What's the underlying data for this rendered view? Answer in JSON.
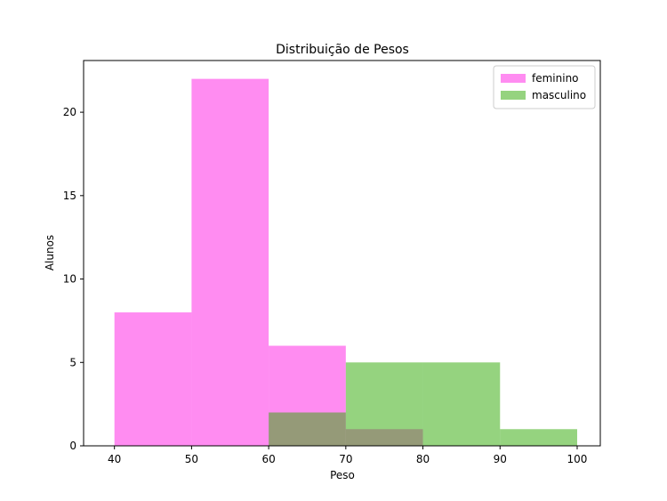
{
  "chart_data": {
    "type": "histogram",
    "title": "Distribuição de Pesos",
    "xlabel": "Peso",
    "ylabel": "Alunos",
    "xlim": [
      36,
      103
    ],
    "ylim": [
      0,
      23.1
    ],
    "xticks": [
      40,
      50,
      60,
      70,
      80,
      90,
      100
    ],
    "yticks": [
      0,
      5,
      10,
      15,
      20
    ],
    "legend_position": "top-right",
    "series": [
      {
        "name": "feminino",
        "color": "#ff00e0",
        "alpha": 0.45,
        "bins": [
          {
            "start": 40,
            "end": 50,
            "count": 8
          },
          {
            "start": 50,
            "end": 60,
            "count": 22
          },
          {
            "start": 60,
            "end": 70,
            "count": 6
          },
          {
            "start": 70,
            "end": 80,
            "count": 1
          }
        ]
      },
      {
        "name": "masculino",
        "color": "#2ca800",
        "alpha": 0.5,
        "bins": [
          {
            "start": 60,
            "end": 70,
            "count": 2
          },
          {
            "start": 70,
            "end": 80,
            "count": 5
          },
          {
            "start": 80,
            "end": 90,
            "count": 5
          },
          {
            "start": 90,
            "end": 100,
            "count": 1
          }
        ]
      }
    ]
  }
}
